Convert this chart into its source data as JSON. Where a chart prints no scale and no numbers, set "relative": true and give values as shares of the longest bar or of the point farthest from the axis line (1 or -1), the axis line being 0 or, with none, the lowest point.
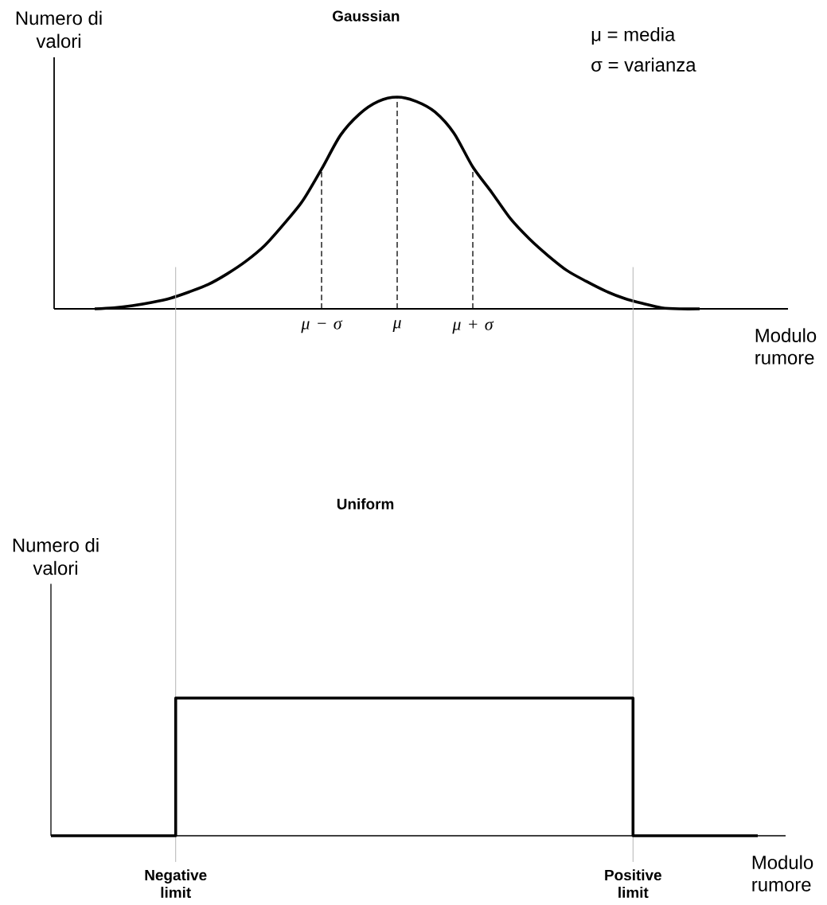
{
  "chart_data": [
    {
      "type": "line",
      "title": "Gaussian",
      "ylabel": "Numero di valori",
      "xlabel": "Modulo rumore",
      "annotations": [
        "μ = media",
        "σ = varianza"
      ],
      "relative": true,
      "categories": [
        null,
        null,
        null,
        null,
        null,
        null,
        null,
        null,
        null,
        null,
        null,
        null,
        "μ − σ",
        null,
        null,
        null,
        "μ",
        null,
        null,
        null,
        "μ + σ",
        null,
        null,
        null,
        null,
        null,
        null,
        null,
        null,
        null,
        null,
        null,
        null
      ],
      "series": [
        {
          "color": "#000000",
          "values": [
            0,
            0.005,
            0.015,
            0.03,
            0.05,
            0.08,
            0.115,
            0.165,
            0.225,
            0.3,
            0.4,
            0.51,
            0.66,
            0.82,
            0.92,
            0.98,
            1,
            0.98,
            0.93,
            0.83,
            0.67,
            0.55,
            0.425,
            0.33,
            0.25,
            0.18,
            0.13,
            0.085,
            0.05,
            0.025,
            0.005,
            0,
            0
          ]
        },
        {
          "color": "#000000",
          "line_style": "dashed",
          "x": [
            "μ − σ",
            "μ − σ"
          ],
          "values": [
            0,
            0.66
          ]
        },
        {
          "color": "#000000",
          "line_style": "dashed",
          "x": [
            "μ",
            "μ"
          ],
          "values": [
            0,
            1
          ]
        },
        {
          "color": "#000000",
          "line_style": "dashed",
          "x": [
            "μ + σ",
            "μ + σ"
          ],
          "values": [
            0,
            0.67
          ]
        }
      ]
    },
    {
      "type": "step",
      "title": "Uniform",
      "ylabel": "Numero di valori",
      "xlabel": "Modulo rumore",
      "relative": true,
      "categories": [
        null,
        null,
        null,
        "Negative limit",
        null,
        null,
        null,
        null,
        null,
        null,
        null,
        null,
        null,
        null,
        "Positive limit",
        null,
        null,
        null
      ],
      "series": [
        {
          "color": "#000000",
          "values": [
            0,
            0,
            0,
            1,
            1,
            1,
            1,
            1,
            1,
            1,
            1,
            1,
            1,
            1,
            0,
            0,
            0,
            0
          ]
        }
      ],
      "ref_lines": [
        {
          "axis": "x",
          "value": "Negative limit",
          "color": "#b4b4b4"
        },
        {
          "axis": "x",
          "value": "Positive limit",
          "color": "#b4b4b4"
        }
      ]
    }
  ]
}
